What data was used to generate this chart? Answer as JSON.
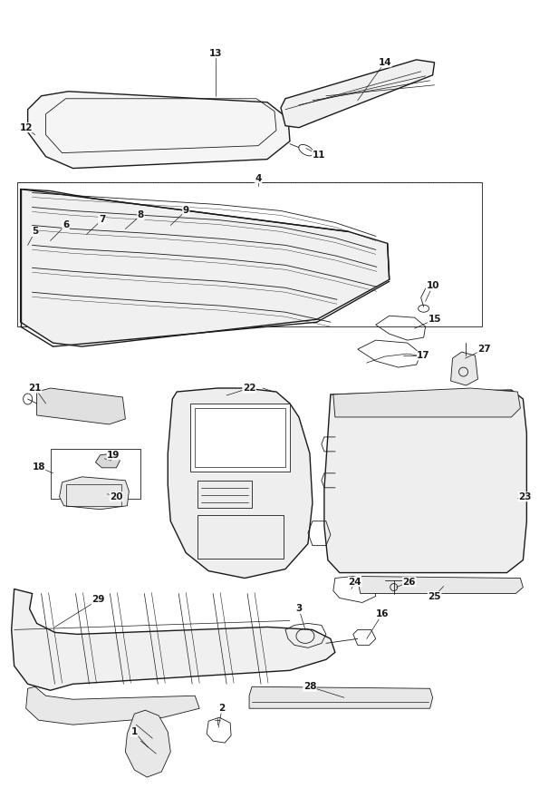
{
  "bg_color": "#ffffff",
  "line_color": "#1a1a1a",
  "fig_width": 6.06,
  "fig_height": 8.8,
  "dpi": 100
}
